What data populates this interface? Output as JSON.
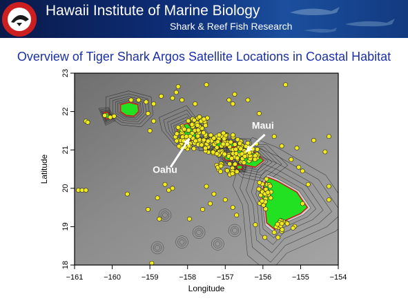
{
  "header": {
    "title": "Hawaii Institute of Marine Biology",
    "subtitle": "Shark & Reef Fish Research"
  },
  "slide_title": "Overview of Tiger Shark Argos Satellite Locations in Coastal Habitat",
  "colors": {
    "banner": "#0e2f7a",
    "title_text": "#1a2fa8",
    "land": "#22e022",
    "points": "#f2ea1c",
    "sea": "#8a8a8a",
    "logo_red": "#cc1f1f"
  },
  "chart_data": {
    "type": "scatter",
    "title": "",
    "xlabel": "Longitude",
    "ylabel": "Latitude",
    "xlim": [
      -161,
      -154
    ],
    "ylim": [
      18,
      23
    ],
    "x_ticks": [
      "−161",
      "−160",
      "−159",
      "−158",
      "−157",
      "−156",
      "−155",
      "−154"
    ],
    "y_ticks": [
      "18",
      "19",
      "20",
      "21",
      "22",
      "23"
    ],
    "annotations": [
      {
        "text": "Oahu",
        "x": -158.6,
        "y": 20.4
      },
      {
        "text": "Maui",
        "x": -156.0,
        "y": 21.55
      }
    ],
    "islands": [
      {
        "name": "Kauai",
        "outline": [
          [
            -159.78,
            22.18
          ],
          [
            -159.55,
            22.24
          ],
          [
            -159.32,
            22.18
          ],
          [
            -159.3,
            22.0
          ],
          [
            -159.42,
            21.88
          ],
          [
            -159.63,
            21.9
          ],
          [
            -159.78,
            22.0
          ]
        ]
      },
      {
        "name": "Niihau",
        "outline": [
          [
            -160.22,
            21.97
          ],
          [
            -160.12,
            21.98
          ],
          [
            -160.05,
            21.85
          ],
          [
            -160.15,
            21.8
          ]
        ]
      },
      {
        "name": "Oahu",
        "outline": [
          [
            -158.28,
            21.58
          ],
          [
            -158.0,
            21.7
          ],
          [
            -157.72,
            21.35
          ],
          [
            -157.65,
            21.27
          ],
          [
            -157.85,
            21.25
          ],
          [
            -158.12,
            21.3
          ],
          [
            -158.25,
            21.45
          ]
        ]
      },
      {
        "name": "Molokai",
        "outline": [
          [
            -157.3,
            21.22
          ],
          [
            -156.75,
            21.2
          ],
          [
            -156.71,
            21.08
          ],
          [
            -157.27,
            21.08
          ]
        ]
      },
      {
        "name": "Lanai",
        "outline": [
          [
            -157.05,
            20.92
          ],
          [
            -156.8,
            20.9
          ],
          [
            -156.82,
            20.72
          ],
          [
            -157.0,
            20.74
          ]
        ]
      },
      {
        "name": "Maui",
        "outline": [
          [
            -156.68,
            21.02
          ],
          [
            -156.45,
            20.92
          ],
          [
            -156.2,
            20.93
          ],
          [
            -155.98,
            20.72
          ],
          [
            -156.2,
            20.55
          ],
          [
            -156.45,
            20.6
          ],
          [
            -156.7,
            20.83
          ]
        ]
      },
      {
        "name": "Kahoolawe",
        "outline": [
          [
            -156.7,
            20.6
          ],
          [
            -156.55,
            20.6
          ],
          [
            -156.55,
            20.5
          ],
          [
            -156.68,
            20.5
          ]
        ]
      },
      {
        "name": "Hawaii",
        "outline": [
          [
            -155.95,
            20.15
          ],
          [
            -155.85,
            20.28
          ],
          [
            -155.6,
            20.18
          ],
          [
            -155.1,
            19.9
          ],
          [
            -154.82,
            19.5
          ],
          [
            -155.0,
            19.34
          ],
          [
            -155.5,
            19.12
          ],
          [
            -155.68,
            18.92
          ],
          [
            -155.9,
            19.1
          ],
          [
            -155.95,
            19.6
          ],
          [
            -156.05,
            19.8
          ]
        ]
      }
    ],
    "series": [
      {
        "points": [
          [
            -160.7,
            21.75
          ],
          [
            -160.65,
            21.72
          ],
          [
            -160.9,
            19.95
          ],
          [
            -160.8,
            19.95
          ],
          [
            -160.7,
            19.95
          ],
          [
            -160.2,
            21.9
          ],
          [
            -160.05,
            21.85
          ],
          [
            -159.95,
            21.88
          ],
          [
            -159.5,
            22.3
          ],
          [
            -159.3,
            22.3
          ],
          [
            -159.1,
            22.25
          ],
          [
            -158.9,
            22.2
          ],
          [
            -158.7,
            22.4
          ],
          [
            -158.3,
            22.5
          ],
          [
            -158.15,
            22.3
          ],
          [
            -157.8,
            22.2
          ],
          [
            -157.5,
            22.7
          ],
          [
            -158.25,
            22.65
          ],
          [
            -158.4,
            22.35
          ],
          [
            -159.05,
            21.95
          ],
          [
            -158.9,
            21.75
          ],
          [
            -159.0,
            21.5
          ],
          [
            -158.6,
            20.1
          ],
          [
            -158.4,
            20.0
          ],
          [
            -158.8,
            19.75
          ],
          [
            -159.6,
            19.85
          ],
          [
            -159.05,
            19.45
          ],
          [
            -158.75,
            19.2
          ],
          [
            -158.95,
            18.05
          ],
          [
            -158.5,
            19.95
          ],
          [
            -156.9,
            22.3
          ],
          [
            -156.8,
            22.2
          ],
          [
            -156.75,
            22.45
          ],
          [
            -156.4,
            22.3
          ],
          [
            -156.1,
            21.95
          ],
          [
            -155.7,
            21.35
          ],
          [
            -155.5,
            21.1
          ],
          [
            -155.25,
            20.75
          ],
          [
            -155.05,
            20.55
          ],
          [
            -154.95,
            20.45
          ],
          [
            -154.8,
            20.1
          ],
          [
            -154.65,
            21.25
          ],
          [
            -155.1,
            21.05
          ],
          [
            -155.4,
            22.7
          ],
          [
            -154.25,
            19.7
          ],
          [
            -154.25,
            20.05
          ],
          [
            -154.95,
            19.6
          ],
          [
            -157.5,
            20.05
          ],
          [
            -157.3,
            19.85
          ],
          [
            -157.4,
            19.6
          ],
          [
            -157.0,
            19.7
          ],
          [
            -156.8,
            19.5
          ],
          [
            -156.7,
            19.3
          ],
          [
            -156.2,
            19.05
          ],
          [
            -155.95,
            18.72
          ],
          [
            -155.7,
            18.85
          ],
          [
            -155.5,
            18.88
          ],
          [
            -155.6,
            18.72
          ],
          [
            -154.25,
            21.35
          ],
          [
            -154.35,
            20.95
          ],
          [
            -157.95,
            19.2
          ],
          [
            -157.6,
            19.45
          ]
        ]
      }
    ]
  }
}
